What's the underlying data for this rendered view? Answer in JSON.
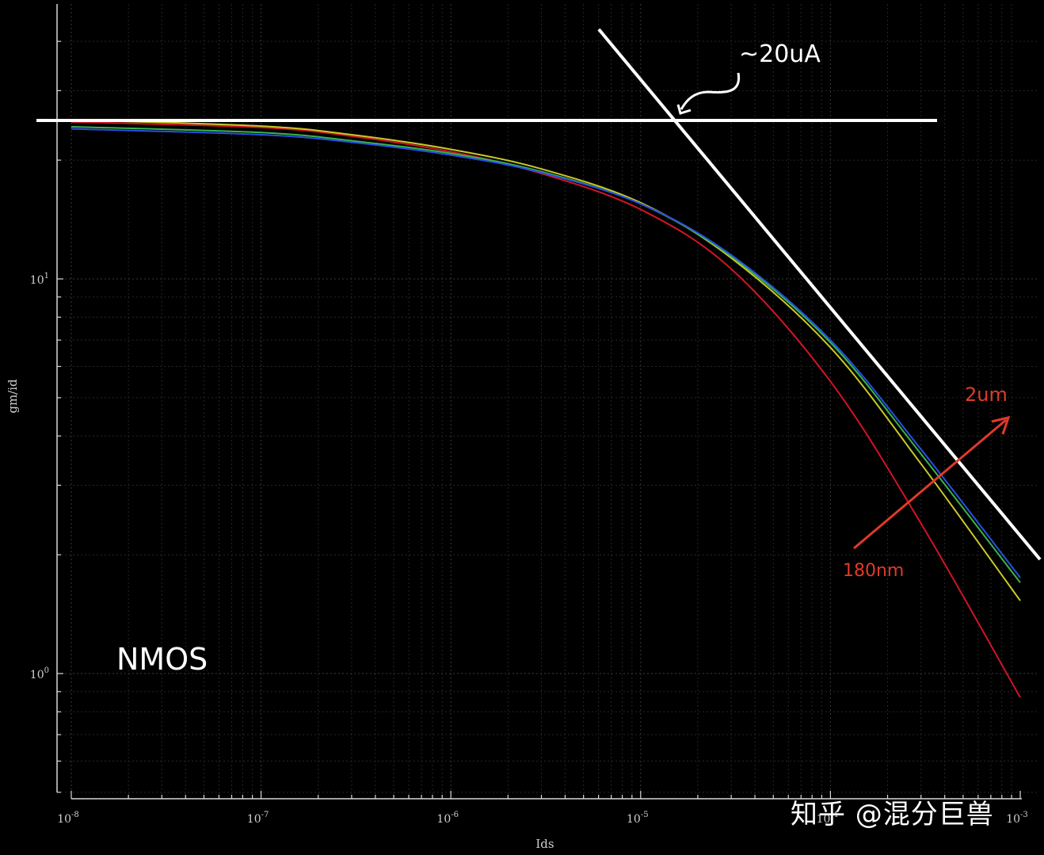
{
  "chart_data": {
    "type": "line",
    "title": "",
    "xlabel": "Ids",
    "ylabel": "gm/id",
    "x_scale": "log",
    "y_scale": "log",
    "xlim": [
      1e-08,
      0.001
    ],
    "ylim": [
      0.6,
      35
    ],
    "grid": true,
    "x_ticks": [
      {
        "value": 1e-08,
        "base": "10",
        "exp": "-8"
      },
      {
        "value": 1e-07,
        "base": "10",
        "exp": "-7"
      },
      {
        "value": 1e-06,
        "base": "10",
        "exp": "-6"
      },
      {
        "value": 1e-05,
        "base": "10",
        "exp": "-5"
      },
      {
        "value": 0.0001,
        "base": "10",
        "exp": "-4"
      },
      {
        "value": 0.001,
        "base": "10",
        "exp": "-3"
      }
    ],
    "y_ticks": [
      {
        "value": 1,
        "base": "10",
        "exp": "0"
      },
      {
        "value": 10,
        "base": "10",
        "exp": "1"
      }
    ],
    "series": [
      {
        "color": "#d01525",
        "x": [
          1e-08,
          1e-07,
          3e-07,
          1e-06,
          3e-06,
          1e-05,
          3e-05,
          0.0001,
          0.0003,
          0.001
        ],
        "values": [
          25.0,
          24.2,
          23.0,
          21.0,
          18.5,
          15.0,
          10.6,
          5.5,
          2.4,
          0.87
        ]
      },
      {
        "color": "#c8c82a",
        "x": [
          1e-08,
          1e-07,
          3e-07,
          1e-06,
          3e-06,
          1e-05,
          3e-05,
          0.0001,
          0.0003,
          0.001
        ],
        "values": [
          25.3,
          24.4,
          23.2,
          21.3,
          19.0,
          15.6,
          11.3,
          6.7,
          3.4,
          1.53
        ]
      },
      {
        "color": "#35b54a",
        "x": [
          1e-08,
          1e-07,
          3e-07,
          1e-06,
          3e-06,
          1e-05,
          3e-05,
          0.0001,
          0.0003,
          0.001
        ],
        "values": [
          24.3,
          23.5,
          22.4,
          20.8,
          18.7,
          15.5,
          11.4,
          6.9,
          3.6,
          1.7
        ]
      },
      {
        "color": "#2a4fe0",
        "x": [
          1e-08,
          1e-07,
          3e-07,
          1e-06,
          3e-06,
          1e-05,
          3e-05,
          0.0001,
          0.0003,
          0.001
        ],
        "values": [
          24.0,
          23.2,
          22.2,
          20.6,
          18.6,
          15.5,
          11.5,
          7.0,
          3.7,
          1.75
        ]
      }
    ],
    "annotations": {
      "current_label": "~20uA",
      "large_length_label": "2um",
      "small_length_label": "180nm",
      "device_label": "NMOS"
    },
    "colors": {
      "background": "#000000",
      "annotation": "#ffffff",
      "arrow": "#e03a2a"
    }
  },
  "watermark": "知乎 @混分巨兽"
}
